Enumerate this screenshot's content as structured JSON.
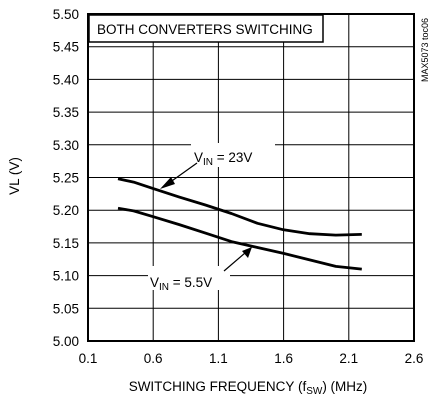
{
  "chart_data": {
    "type": "line",
    "title": "",
    "xlabel": {
      "main": "SWITCHING FREQUENCY (f",
      "sub": "SW",
      "tail": ") (MHz)"
    },
    "ylabel": "VL (V)",
    "xlim": [
      0.1,
      2.6
    ],
    "ylim": [
      5.0,
      5.5
    ],
    "xticks": [
      "0.1",
      "0.6",
      "1.1",
      "1.6",
      "2.1",
      "2.6"
    ],
    "yticks": [
      "5.00",
      "5.05",
      "5.10",
      "5.15",
      "5.20",
      "5.25",
      "5.30",
      "5.35",
      "5.40",
      "5.45",
      "5.50"
    ],
    "grid": true,
    "inset_text": "BOTH CONVERTERS SWITCHING",
    "side_id": "MAX5073 toc06",
    "series": [
      {
        "label_main": "V",
        "label_sub": "IN",
        "label_tail": " = 23V",
        "x": [
          0.33,
          0.45,
          0.6,
          0.8,
          1.0,
          1.2,
          1.4,
          1.6,
          1.8,
          2.0,
          2.2
        ],
        "y": [
          5.248,
          5.243,
          5.233,
          5.22,
          5.208,
          5.195,
          5.18,
          5.17,
          5.164,
          5.162,
          5.163
        ]
      },
      {
        "label_main": "V",
        "label_sub": "IN",
        "label_tail": " = 5.5V",
        "x": [
          0.33,
          0.45,
          0.6,
          0.8,
          1.0,
          1.2,
          1.4,
          1.6,
          1.8,
          2.0,
          2.2
        ],
        "y": [
          5.203,
          5.199,
          5.19,
          5.178,
          5.165,
          5.152,
          5.143,
          5.134,
          5.124,
          5.114,
          5.11
        ]
      }
    ]
  }
}
